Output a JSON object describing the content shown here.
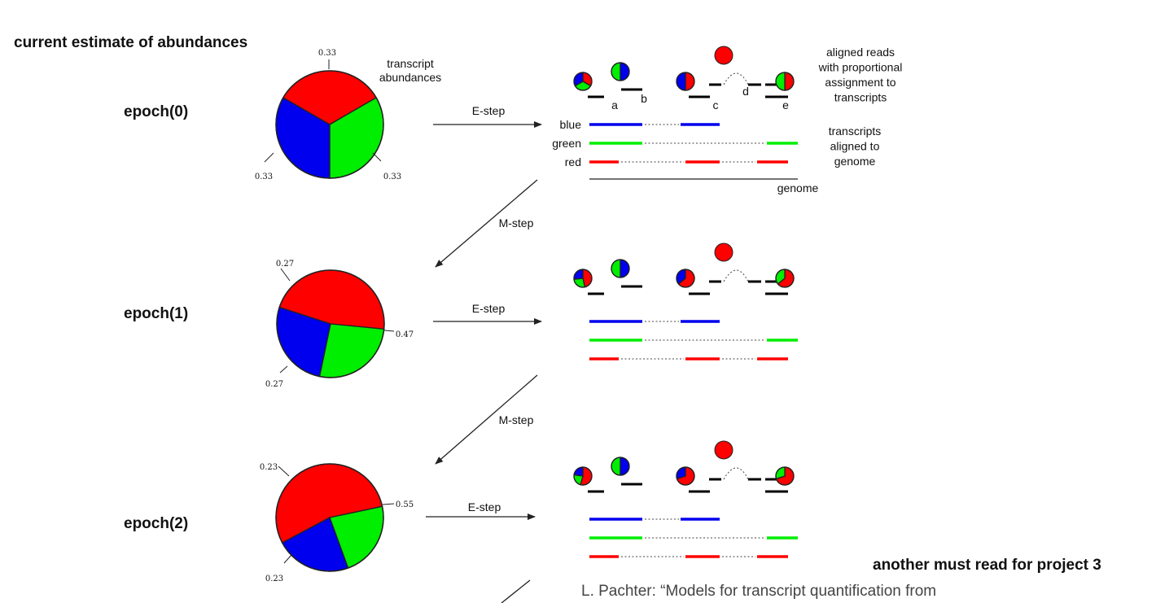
{
  "heading": "current estimate of abundances",
  "epochs": [
    {
      "label": "epoch(0)",
      "slices": {
        "red": 0.33,
        "green": 0.33,
        "blue": 0.33
      },
      "pie_labels": {
        "top": "0.33",
        "right": "0.33",
        "left": "0.33"
      }
    },
    {
      "label": "epoch(1)",
      "slices": {
        "red": 0.47,
        "green": 0.27,
        "blue": 0.27
      },
      "pie_labels": {
        "top": "0.27",
        "right": "0.47",
        "left": "0.27"
      }
    },
    {
      "label": "epoch(2)",
      "slices": {
        "red": 0.55,
        "green": 0.23,
        "blue": 0.23
      },
      "pie_labels": {
        "top": "0.23",
        "right": "0.55",
        "left": "0.23"
      }
    }
  ],
  "annotations": {
    "transcript_abundances": [
      "transcript",
      "abundances"
    ],
    "aligned_reads": [
      "aligned reads",
      "with proportional",
      "assignment to",
      "transcripts"
    ],
    "transcripts_aligned": [
      "transcripts",
      "aligned to",
      "genome"
    ],
    "genome": "genome",
    "estep": "E-step",
    "mstep": "M-step"
  },
  "transcript_names": [
    "blue",
    "green",
    "red"
  ],
  "read_letters": [
    "a",
    "b",
    "c",
    "d",
    "e"
  ],
  "colors": {
    "red": "#ff0000",
    "green": "#00ee00",
    "blue": "#0000ee",
    "read": "#000000"
  },
  "footer": {
    "title": "another must read for project 3",
    "citation": "L. Pachter: “Models for transcript quantification from"
  }
}
